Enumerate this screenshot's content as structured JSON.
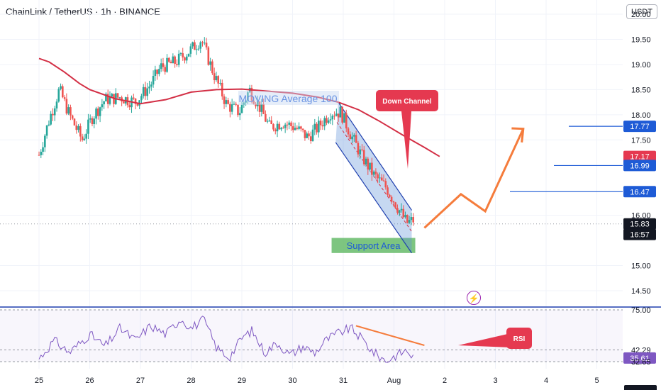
{
  "header": {
    "title": "ChainLink / TetherUS · 1h · BINANCE",
    "currency": "USDT"
  },
  "colors": {
    "up": "#26a69a",
    "down": "#ef5350",
    "ma": "#d32f45",
    "rsi": "#7e57c2",
    "channel_fill": "#5b8fd6",
    "support": "#66bb6a",
    "arrow": "#f57c3c",
    "level_line": "#1e5bd6",
    "text_blue": "#1e5bd6",
    "annot_red": "#e53950"
  },
  "annotations": {
    "ma_label": "MOVING Average 100",
    "down_channel_label": "Down Channel",
    "support_label": "Support Area",
    "rsi_label": "RSI",
    "bolt_icon": "lightning-icon"
  },
  "chart_data": {
    "type": "candlestick",
    "title": "ChainLink / TetherUS · 1h · BINANCE",
    "y_axis": {
      "ticks": [
        "20.00",
        "19.50",
        "19.00",
        "18.50",
        "18.00",
        "17.50",
        "16.00",
        "15.00",
        "14.50"
      ],
      "range": [
        14.1,
        20.4
      ]
    },
    "x_axis": {
      "ticks": [
        "25",
        "26",
        "27",
        "28",
        "29",
        "30",
        "31",
        "Aug",
        "2",
        "3",
        "4",
        "5"
      ]
    },
    "price_labels": [
      {
        "text": "17.77",
        "value": 17.77,
        "color": "#1e5bd6"
      },
      {
        "text": "17.17",
        "value": 17.17,
        "color": "#e53950"
      },
      {
        "text": "16.99",
        "value": 16.99,
        "color": "#1e5bd6"
      },
      {
        "text": "16.47",
        "value": 16.47,
        "color": "#1e5bd6"
      },
      {
        "text": "15.83",
        "value": 15.83,
        "color": "#131722"
      },
      {
        "text": "16:57",
        "value": 15.62,
        "color": "#131722"
      }
    ],
    "levels": [
      17.77,
      16.99,
      16.47
    ],
    "moving_average_100": [
      {
        "t": 0,
        "v": 19.12
      },
      {
        "t": 0.2,
        "v": 19.05
      },
      {
        "t": 0.5,
        "v": 18.85
      },
      {
        "t": 0.8,
        "v": 18.62
      },
      {
        "t": 1.0,
        "v": 18.5
      },
      {
        "t": 1.5,
        "v": 18.32
      },
      {
        "t": 2.0,
        "v": 18.22
      },
      {
        "t": 2.5,
        "v": 18.3
      },
      {
        "t": 3.0,
        "v": 18.45
      },
      {
        "t": 3.5,
        "v": 18.5
      },
      {
        "t": 4.0,
        "v": 18.51
      },
      {
        "t": 4.5,
        "v": 18.47
      },
      {
        "t": 5.0,
        "v": 18.43
      },
      {
        "t": 5.5,
        "v": 18.35
      },
      {
        "t": 5.9,
        "v": 18.25
      },
      {
        "t": 6.3,
        "v": 18.1
      },
      {
        "t": 6.7,
        "v": 17.88
      },
      {
        "t": 7.2,
        "v": 17.58
      },
      {
        "t": 7.6,
        "v": 17.35
      },
      {
        "t": 7.9,
        "v": 17.17
      }
    ],
    "candles_anchor_closes": [
      {
        "t": 0.0,
        "v": 17.2
      },
      {
        "t": 0.2,
        "v": 17.9
      },
      {
        "t": 0.4,
        "v": 18.5
      },
      {
        "t": 0.6,
        "v": 18.0
      },
      {
        "t": 0.85,
        "v": 17.5
      },
      {
        "t": 1.05,
        "v": 17.95
      },
      {
        "t": 1.3,
        "v": 18.3
      },
      {
        "t": 1.6,
        "v": 18.35
      },
      {
        "t": 1.9,
        "v": 18.25
      },
      {
        "t": 2.2,
        "v": 18.6
      },
      {
        "t": 2.4,
        "v": 18.95
      },
      {
        "t": 2.7,
        "v": 19.05
      },
      {
        "t": 3.0,
        "v": 19.3
      },
      {
        "t": 3.2,
        "v": 19.5
      },
      {
        "t": 3.45,
        "v": 18.8
      },
      {
        "t": 3.7,
        "v": 18.2
      },
      {
        "t": 3.95,
        "v": 18.05
      },
      {
        "t": 4.15,
        "v": 18.5
      },
      {
        "t": 4.35,
        "v": 18.15
      },
      {
        "t": 4.55,
        "v": 17.75
      },
      {
        "t": 4.8,
        "v": 17.85
      },
      {
        "t": 5.05,
        "v": 17.75
      },
      {
        "t": 5.3,
        "v": 17.55
      },
      {
        "t": 5.5,
        "v": 17.75
      },
      {
        "t": 5.75,
        "v": 18.05
      },
      {
        "t": 5.95,
        "v": 18.05
      },
      {
        "t": 6.15,
        "v": 17.6
      },
      {
        "t": 6.35,
        "v": 17.2
      },
      {
        "t": 6.6,
        "v": 16.8
      },
      {
        "t": 6.85,
        "v": 16.55
      },
      {
        "t": 7.05,
        "v": 16.2
      },
      {
        "t": 7.25,
        "v": 15.85
      },
      {
        "t": 7.38,
        "v": 15.9
      }
    ],
    "down_channel": {
      "upper": [
        {
          "t": 5.9,
          "v": 18.25
        },
        {
          "t": 7.35,
          "v": 16.1
        }
      ],
      "lower": [
        {
          "t": 5.85,
          "v": 17.45
        },
        {
          "t": 7.35,
          "v": 15.25
        }
      ]
    },
    "support_area": {
      "t0": 5.77,
      "t1": 7.42,
      "v0": 15.25,
      "v1": 15.55
    },
    "projection": [
      {
        "t": 7.6,
        "v": 15.75
      },
      {
        "t": 8.32,
        "v": 16.42
      },
      {
        "t": 8.8,
        "v": 16.08
      },
      {
        "t": 9.55,
        "v": 17.72
      }
    ],
    "projection_arrowhead": [
      {
        "t": 9.32,
        "v": 17.73
      },
      {
        "t": 9.55,
        "v": 17.72
      },
      {
        "t": 9.52,
        "v": 17.45
      }
    ],
    "rsi": {
      "levels": [
        "75.00",
        "42.29",
        "35.61",
        "32.65"
      ],
      "current": 35.61,
      "range": [
        25,
        80
      ],
      "trendline": [
        {
          "t": 6.25,
          "v": 62
        },
        {
          "t": 7.6,
          "v": 46
        }
      ],
      "series_anchors": [
        {
          "t": 0,
          "v": 35
        },
        {
          "t": 0.3,
          "v": 50
        },
        {
          "t": 0.6,
          "v": 40
        },
        {
          "t": 1.0,
          "v": 55
        },
        {
          "t": 1.3,
          "v": 45
        },
        {
          "t": 1.6,
          "v": 60
        },
        {
          "t": 1.9,
          "v": 50
        },
        {
          "t": 2.2,
          "v": 62
        },
        {
          "t": 2.5,
          "v": 55
        },
        {
          "t": 2.8,
          "v": 68
        },
        {
          "t": 3.0,
          "v": 60
        },
        {
          "t": 3.25,
          "v": 67
        },
        {
          "t": 3.5,
          "v": 44
        },
        {
          "t": 3.75,
          "v": 36
        },
        {
          "t": 4.0,
          "v": 52
        },
        {
          "t": 4.2,
          "v": 58
        },
        {
          "t": 4.45,
          "v": 40
        },
        {
          "t": 4.7,
          "v": 48
        },
        {
          "t": 4.95,
          "v": 38
        },
        {
          "t": 5.2,
          "v": 45
        },
        {
          "t": 5.45,
          "v": 40
        },
        {
          "t": 5.65,
          "v": 50
        },
        {
          "t": 5.9,
          "v": 56
        },
        {
          "t": 6.15,
          "v": 60
        },
        {
          "t": 6.35,
          "v": 52
        },
        {
          "t": 6.6,
          "v": 40
        },
        {
          "t": 6.85,
          "v": 33
        },
        {
          "t": 7.05,
          "v": 38
        },
        {
          "t": 7.25,
          "v": 42
        },
        {
          "t": 7.38,
          "v": 36
        }
      ]
    }
  }
}
